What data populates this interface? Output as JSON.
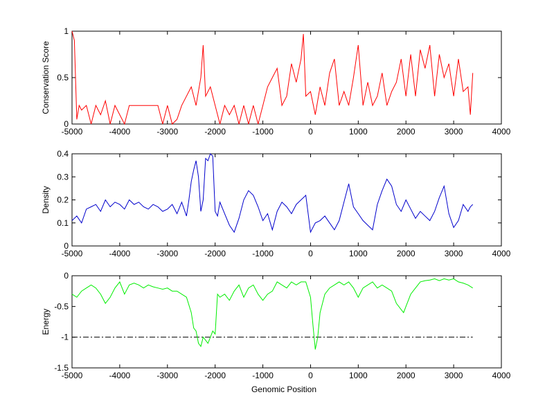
{
  "figure": {
    "background": "#ffffff",
    "xlabel": "Genomic Position"
  },
  "chart_data": [
    {
      "type": "line",
      "ylabel": "Conservation Score",
      "color": "#ff0000",
      "xlim": [
        -5000,
        4000
      ],
      "ylim": [
        0,
        1
      ],
      "xticks": [
        -5000,
        -4000,
        -3000,
        -2000,
        -1000,
        0,
        1000,
        2000,
        3000,
        4000
      ],
      "xtick_labels": [
        "-5000",
        "-4000",
        "-3000",
        "-2000",
        "-1000",
        "0",
        "1000",
        "2000",
        "3000",
        "4000"
      ],
      "yticks": [
        0,
        0.5,
        1
      ],
      "ytick_labels": [
        "0",
        "0.5",
        "1"
      ],
      "series": [
        {
          "x": [
            -5000,
            -4950,
            -4900,
            -4850,
            -4800,
            -4700,
            -4600,
            -4500,
            -4400,
            -4300,
            -4200,
            -4100,
            -4000,
            -3900,
            -3800,
            -3700,
            -3600,
            -3500,
            -3400,
            -3300,
            -3200,
            -3100,
            -3000,
            -2900,
            -2800,
            -2700,
            -2600,
            -2500,
            -2400,
            -2300,
            -2250,
            -2200,
            -2100,
            -2000,
            -1900,
            -1800,
            -1700,
            -1600,
            -1500,
            -1400,
            -1300,
            -1200,
            -1100,
            -1000,
            -900,
            -800,
            -700,
            -600,
            -500,
            -400,
            -300,
            -200,
            -150,
            -100,
            0,
            100,
            200,
            300,
            400,
            500,
            600,
            700,
            800,
            900,
            1000,
            1100,
            1200,
            1300,
            1400,
            1500,
            1600,
            1700,
            1800,
            1900,
            2000,
            2100,
            2200,
            2300,
            2400,
            2500,
            2600,
            2700,
            2800,
            2900,
            3000,
            3100,
            3200,
            3300,
            3350,
            3400
          ],
          "y": [
            1.0,
            0.9,
            0.05,
            0.2,
            0.15,
            0.2,
            0.0,
            0.2,
            0.1,
            0.25,
            0.0,
            0.2,
            0.1,
            0.0,
            0.2,
            0.2,
            0.2,
            0.2,
            0.2,
            0.2,
            0.2,
            0.0,
            0.2,
            0.0,
            0.05,
            0.2,
            0.3,
            0.4,
            0.2,
            0.5,
            0.85,
            0.3,
            0.4,
            0.2,
            0.0,
            0.2,
            0.1,
            0.2,
            0.0,
            0.2,
            0.0,
            0.2,
            0.0,
            0.2,
            0.4,
            0.5,
            0.6,
            0.2,
            0.3,
            0.65,
            0.45,
            0.7,
            0.97,
            0.3,
            0.35,
            0.1,
            0.4,
            0.2,
            0.55,
            0.7,
            0.2,
            0.35,
            0.2,
            0.5,
            0.85,
            0.2,
            0.45,
            0.2,
            0.3,
            0.55,
            0.2,
            0.35,
            0.45,
            0.7,
            0.3,
            0.75,
            0.3,
            0.8,
            0.6,
            0.85,
            0.3,
            0.75,
            0.5,
            0.65,
            0.3,
            0.7,
            0.35,
            0.4,
            0.1,
            0.55
          ]
        }
      ]
    },
    {
      "type": "line",
      "ylabel": "Density",
      "color": "#0000cc",
      "xlim": [
        -5000,
        4000
      ],
      "ylim": [
        0,
        0.4
      ],
      "xticks": [
        -5000,
        -4000,
        -3000,
        -2000,
        -1000,
        0,
        1000,
        2000,
        3000,
        4000
      ],
      "xtick_labels": [
        "-5000",
        "-4000",
        "-3000",
        "-2000",
        "-1000",
        "0",
        "1000",
        "2000",
        "3000",
        "4000"
      ],
      "yticks": [
        0,
        0.1,
        0.2,
        0.3,
        0.4
      ],
      "ytick_labels": [
        "0",
        "0.1",
        "0.2",
        "0.3",
        "0.4"
      ],
      "series": [
        {
          "x": [
            -5000,
            -4900,
            -4800,
            -4700,
            -4600,
            -4500,
            -4400,
            -4300,
            -4200,
            -4100,
            -4000,
            -3900,
            -3800,
            -3700,
            -3600,
            -3500,
            -3400,
            -3300,
            -3200,
            -3100,
            -3000,
            -2900,
            -2800,
            -2700,
            -2600,
            -2550,
            -2500,
            -2450,
            -2400,
            -2350,
            -2300,
            -2250,
            -2200,
            -2150,
            -2100,
            -2050,
            -2000,
            -1950,
            -1900,
            -1800,
            -1700,
            -1600,
            -1500,
            -1400,
            -1300,
            -1200,
            -1100,
            -1000,
            -900,
            -800,
            -700,
            -600,
            -500,
            -400,
            -300,
            -200,
            -100,
            0,
            100,
            200,
            300,
            400,
            500,
            600,
            700,
            800,
            900,
            1000,
            1100,
            1200,
            1300,
            1400,
            1500,
            1600,
            1700,
            1800,
            1900,
            2000,
            2100,
            2200,
            2300,
            2400,
            2500,
            2600,
            2700,
            2800,
            2900,
            3000,
            3100,
            3200,
            3300,
            3350,
            3400
          ],
          "y": [
            0.11,
            0.13,
            0.1,
            0.16,
            0.17,
            0.18,
            0.15,
            0.2,
            0.17,
            0.19,
            0.18,
            0.16,
            0.2,
            0.18,
            0.19,
            0.17,
            0.16,
            0.18,
            0.17,
            0.15,
            0.16,
            0.18,
            0.14,
            0.19,
            0.13,
            0.2,
            0.28,
            0.33,
            0.37,
            0.3,
            0.15,
            0.2,
            0.38,
            0.37,
            0.4,
            0.39,
            0.15,
            0.13,
            0.19,
            0.14,
            0.09,
            0.06,
            0.12,
            0.2,
            0.24,
            0.22,
            0.17,
            0.11,
            0.14,
            0.07,
            0.15,
            0.19,
            0.17,
            0.14,
            0.18,
            0.2,
            0.22,
            0.06,
            0.1,
            0.11,
            0.13,
            0.1,
            0.07,
            0.11,
            0.19,
            0.27,
            0.17,
            0.14,
            0.11,
            0.09,
            0.07,
            0.18,
            0.24,
            0.29,
            0.26,
            0.18,
            0.15,
            0.2,
            0.16,
            0.12,
            0.15,
            0.13,
            0.11,
            0.15,
            0.21,
            0.26,
            0.14,
            0.08,
            0.11,
            0.18,
            0.15,
            0.17,
            0.18
          ]
        }
      ]
    },
    {
      "type": "line",
      "ylabel": "Energy",
      "color": "#00ee00",
      "xlim": [
        -5000,
        4000
      ],
      "ylim": [
        -1.5,
        0
      ],
      "xticks": [
        -5000,
        -4000,
        -3000,
        -2000,
        -1000,
        0,
        1000,
        2000,
        3000,
        4000
      ],
      "xtick_labels": [
        "-5000",
        "-4000",
        "-3000",
        "-2000",
        "-1000",
        "0",
        "1000",
        "2000",
        "3000",
        "4000"
      ],
      "yticks": [
        -1.5,
        -1,
        -0.5,
        0
      ],
      "ytick_labels": [
        "-1.5",
        "-1",
        "-0.5",
        "0"
      ],
      "reference_line": {
        "y": -1,
        "style": "dash-dot",
        "color": "#000000",
        "x": [
          -5000,
          3400
        ]
      },
      "series": [
        {
          "x": [
            -5000,
            -4900,
            -4800,
            -4700,
            -4600,
            -4500,
            -4400,
            -4300,
            -4200,
            -4100,
            -4000,
            -3900,
            -3800,
            -3700,
            -3600,
            -3500,
            -3400,
            -3300,
            -3200,
            -3100,
            -3000,
            -2900,
            -2800,
            -2700,
            -2600,
            -2500,
            -2450,
            -2400,
            -2350,
            -2300,
            -2250,
            -2200,
            -2150,
            -2100,
            -2050,
            -2000,
            -1950,
            -1900,
            -1800,
            -1700,
            -1600,
            -1500,
            -1400,
            -1300,
            -1200,
            -1100,
            -1000,
            -900,
            -800,
            -700,
            -600,
            -500,
            -400,
            -300,
            -200,
            -100,
            0,
            50,
            100,
            150,
            200,
            300,
            400,
            500,
            600,
            700,
            800,
            900,
            1000,
            1100,
            1200,
            1300,
            1400,
            1500,
            1600,
            1700,
            1800,
            1900,
            1950,
            2000,
            2100,
            2200,
            2300,
            2400,
            2500,
            2600,
            2700,
            2800,
            2900,
            3000,
            3100,
            3200,
            3300,
            3400
          ],
          "y": [
            -0.3,
            -0.35,
            -0.25,
            -0.2,
            -0.15,
            -0.2,
            -0.3,
            -0.45,
            -0.35,
            -0.2,
            -0.1,
            -0.3,
            -0.15,
            -0.12,
            -0.15,
            -0.2,
            -0.15,
            -0.18,
            -0.2,
            -0.22,
            -0.2,
            -0.25,
            -0.25,
            -0.3,
            -0.35,
            -0.6,
            -0.85,
            -0.9,
            -1.1,
            -1.15,
            -1.0,
            -1.05,
            -1.1,
            -1.0,
            -0.9,
            -0.95,
            -0.3,
            -0.35,
            -0.3,
            -0.4,
            -0.25,
            -0.15,
            -0.35,
            -0.2,
            -0.15,
            -0.3,
            -0.4,
            -0.3,
            -0.25,
            -0.1,
            -0.15,
            -0.2,
            -0.1,
            -0.15,
            -0.1,
            -0.1,
            -0.35,
            -0.8,
            -1.2,
            -1.0,
            -0.6,
            -0.3,
            -0.2,
            -0.15,
            -0.1,
            -0.15,
            -0.1,
            -0.2,
            -0.35,
            -0.2,
            -0.15,
            -0.1,
            -0.2,
            -0.15,
            -0.2,
            -0.25,
            -0.45,
            -0.55,
            -0.6,
            -0.5,
            -0.3,
            -0.2,
            -0.1,
            -0.08,
            -0.07,
            -0.05,
            -0.08,
            -0.05,
            -0.07,
            -0.05,
            -0.1,
            -0.12,
            -0.15,
            -0.2
          ]
        }
      ]
    }
  ]
}
